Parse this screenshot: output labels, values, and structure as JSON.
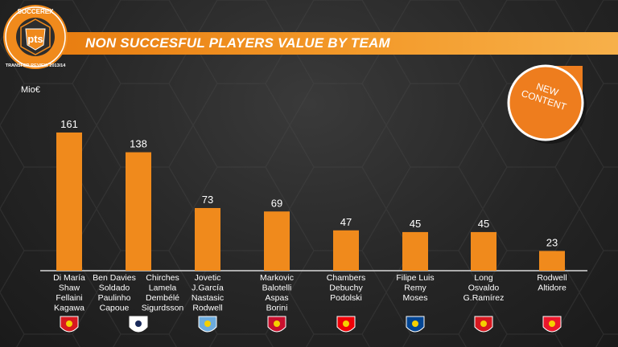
{
  "logo": {
    "top_text": "SOCCEREX",
    "center_text": "pts",
    "bottom_text": "TRANSFER REVIEW 2013/14"
  },
  "title": "NON SUCCESFUL PLAYERS VALUE BY TEAM",
  "unit_label": "Mio€",
  "badge": {
    "line1": "NEW",
    "line2": "CONTENT"
  },
  "colors": {
    "bar": "#f08a1c",
    "accent": "#f39a2a",
    "badge": "#ee7d1e"
  },
  "chart_data": {
    "type": "bar",
    "title": "NON SUCCESFUL PLAYERS VALUE BY TEAM",
    "ylabel": "Mio€",
    "ylim": [
      0,
      175
    ],
    "grid": false,
    "categories": [
      "Di María\nShaw\nFellaini\nKagawa",
      "Ben Davies\nSoldado\nPaulinho\nCapoue | Chirches\nLamela\nDembélé\nSigurdsson",
      "Jovetic\nJ.García\nNastasic\nRodwell",
      "Markovic\nBalotelli\nAspas\nBorini",
      "Chambers\nDebuchy\nPodolski",
      "Filipe Luis\nRemy\nMoses",
      "Long\nOsvaldo\nG.Ramírez",
      "Rodwell\nAltidore"
    ],
    "values": [
      161,
      138,
      73,
      69,
      47,
      45,
      45,
      23
    ],
    "player_labels": [
      [
        [
          "Di María",
          "Shaw",
          "Fellaini",
          "Kagawa"
        ]
      ],
      [
        [
          "Ben Davies",
          "Soldado",
          "Paulinho",
          "Capoue"
        ],
        [
          "Chirches",
          "Lamela",
          "Dembélé",
          "Sigurdsson"
        ]
      ],
      [
        [
          "Jovetic",
          "J.García",
          "Nastasic",
          "Rodwell"
        ]
      ],
      [
        [
          "Markovic",
          "Balotelli",
          "Aspas",
          "Borini"
        ]
      ],
      [
        [
          "Chambers",
          "Debuchy",
          "Podolski"
        ]
      ],
      [
        [
          "Filipe Luis",
          "Remy",
          "Moses"
        ]
      ],
      [
        [
          "Long",
          "Osvaldo",
          "G.Ramírez"
        ]
      ],
      [
        [
          "Rodwell",
          "Altidore"
        ]
      ]
    ],
    "crests": [
      "manchester-united-crest",
      "tottenham-crest",
      "manchester-city-crest",
      "liverpool-crest",
      "arsenal-crest",
      "chelsea-crest",
      "southampton-crest",
      "sunderland-crest"
    ],
    "crest_colors": [
      "#d71920",
      "#ffffff",
      "#6cabdd",
      "#c8102e",
      "#ef0107",
      "#034694",
      "#d71920",
      "#eb172b"
    ]
  }
}
